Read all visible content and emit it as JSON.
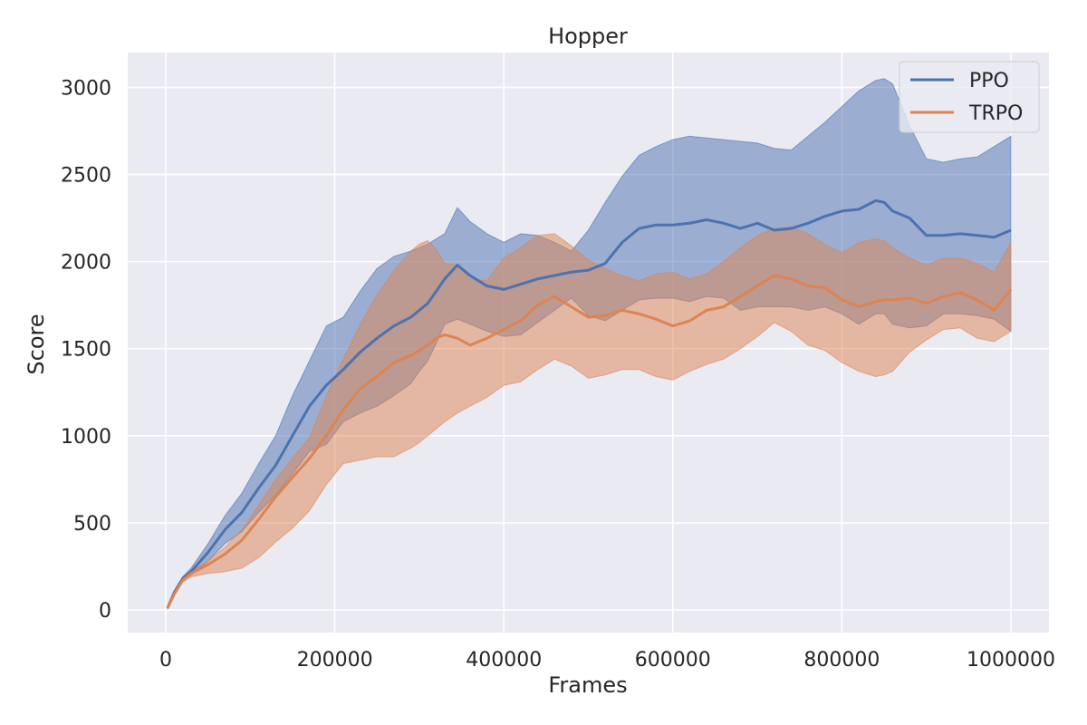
{
  "chart_data": {
    "type": "area",
    "title": "Hopper",
    "xlabel": "Frames",
    "ylabel": "Score",
    "xlim": [
      -45000,
      1045000
    ],
    "ylim": [
      -130,
      3200
    ],
    "xticks": [
      0,
      200000,
      400000,
      600000,
      800000,
      1000000
    ],
    "xtick_labels": [
      "0",
      "200000",
      "400000",
      "600000",
      "800000",
      "1000000"
    ],
    "yticks": [
      0,
      500,
      1000,
      1500,
      2000,
      2500,
      3000
    ],
    "ytick_labels": [
      "0",
      "500",
      "1000",
      "1500",
      "2000",
      "2500",
      "3000"
    ],
    "grid": true,
    "legend_position": "top-right",
    "background_color": "#eaeaf2",
    "series": [
      {
        "name": "PPO",
        "color": "#4c72b0",
        "x": [
          2000,
          10000,
          20000,
          30000,
          50000,
          70000,
          90000,
          110000,
          130000,
          150000,
          170000,
          190000,
          210000,
          230000,
          250000,
          270000,
          290000,
          300000,
          310000,
          320000,
          330000,
          345000,
          360000,
          380000,
          400000,
          420000,
          440000,
          460000,
          480000,
          500000,
          520000,
          540000,
          560000,
          580000,
          600000,
          620000,
          640000,
          660000,
          680000,
          700000,
          720000,
          740000,
          760000,
          780000,
          800000,
          820000,
          840000,
          850000,
          860000,
          880000,
          900000,
          920000,
          940000,
          960000,
          980000,
          1000000
        ],
        "mean": [
          10,
          100,
          180,
          220,
          330,
          460,
          560,
          700,
          830,
          1000,
          1170,
          1290,
          1380,
          1480,
          1560,
          1630,
          1680,
          1720,
          1760,
          1830,
          1900,
          1980,
          1920,
          1860,
          1840,
          1870,
          1900,
          1920,
          1940,
          1950,
          1990,
          2110,
          2190,
          2210,
          2210,
          2220,
          2240,
          2220,
          2190,
          2220,
          2180,
          2190,
          2220,
          2260,
          2290,
          2300,
          2350,
          2340,
          2290,
          2250,
          2150,
          2150,
          2160,
          2150,
          2140,
          2180
        ],
        "upper": [
          15,
          105,
          190,
          240,
          380,
          540,
          670,
          840,
          1000,
          1230,
          1430,
          1630,
          1680,
          1830,
          1960,
          2030,
          2060,
          2080,
          2100,
          2130,
          2160,
          2310,
          2230,
          2160,
          2110,
          2160,
          2150,
          2110,
          2060,
          2180,
          2340,
          2490,
          2610,
          2660,
          2700,
          2720,
          2710,
          2700,
          2690,
          2680,
          2650,
          2640,
          2720,
          2800,
          2890,
          2980,
          3040,
          3050,
          3020,
          2780,
          2590,
          2570,
          2590,
          2600,
          2660,
          2720
        ],
        "lower": [
          5,
          95,
          170,
          200,
          280,
          380,
          450,
          560,
          660,
          780,
          910,
          950,
          1080,
          1130,
          1170,
          1230,
          1300,
          1370,
          1430,
          1530,
          1640,
          1670,
          1640,
          1600,
          1570,
          1580,
          1650,
          1720,
          1790,
          1690,
          1660,
          1720,
          1780,
          1790,
          1790,
          1770,
          1800,
          1790,
          1720,
          1740,
          1740,
          1740,
          1720,
          1740,
          1700,
          1640,
          1700,
          1700,
          1640,
          1620,
          1630,
          1700,
          1700,
          1690,
          1670,
          1600
        ]
      },
      {
        "name": "TRPO",
        "color": "#dd8452",
        "x": [
          2000,
          10000,
          20000,
          30000,
          50000,
          70000,
          90000,
          110000,
          130000,
          150000,
          170000,
          190000,
          210000,
          230000,
          250000,
          270000,
          290000,
          300000,
          310000,
          320000,
          330000,
          345000,
          360000,
          380000,
          400000,
          420000,
          440000,
          460000,
          480000,
          500000,
          520000,
          540000,
          560000,
          580000,
          600000,
          620000,
          640000,
          660000,
          680000,
          700000,
          720000,
          740000,
          760000,
          780000,
          800000,
          820000,
          840000,
          850000,
          860000,
          880000,
          900000,
          920000,
          940000,
          960000,
          980000,
          1000000
        ],
        "mean": [
          10,
          90,
          170,
          210,
          260,
          320,
          400,
          520,
          650,
          760,
          870,
          1000,
          1150,
          1270,
          1340,
          1420,
          1460,
          1490,
          1520,
          1560,
          1580,
          1560,
          1520,
          1560,
          1610,
          1660,
          1750,
          1800,
          1740,
          1680,
          1690,
          1720,
          1700,
          1670,
          1630,
          1660,
          1720,
          1740,
          1800,
          1860,
          1920,
          1900,
          1860,
          1850,
          1780,
          1740,
          1770,
          1780,
          1780,
          1790,
          1760,
          1800,
          1820,
          1780,
          1720,
          1840
        ],
        "upper": [
          15,
          95,
          180,
          220,
          280,
          360,
          460,
          600,
          750,
          870,
          990,
          1230,
          1440,
          1640,
          1810,
          1950,
          2060,
          2100,
          2120,
          2070,
          1990,
          1980,
          1900,
          1890,
          2020,
          2080,
          2150,
          2160,
          2090,
          2010,
          1960,
          1920,
          1890,
          1930,
          1940,
          1900,
          1930,
          2000,
          2080,
          2150,
          2190,
          2200,
          2160,
          2100,
          2050,
          2110,
          2130,
          2120,
          2080,
          2020,
          1980,
          2020,
          2020,
          1990,
          1940,
          2110
        ],
        "lower": [
          5,
          85,
          160,
          190,
          210,
          220,
          240,
          300,
          390,
          470,
          570,
          720,
          840,
          860,
          880,
          880,
          930,
          960,
          1000,
          1040,
          1080,
          1130,
          1170,
          1220,
          1290,
          1310,
          1380,
          1440,
          1400,
          1330,
          1350,
          1380,
          1380,
          1340,
          1320,
          1370,
          1410,
          1440,
          1500,
          1570,
          1650,
          1600,
          1520,
          1490,
          1420,
          1370,
          1340,
          1350,
          1370,
          1480,
          1550,
          1610,
          1620,
          1560,
          1540,
          1600
        ]
      }
    ]
  }
}
